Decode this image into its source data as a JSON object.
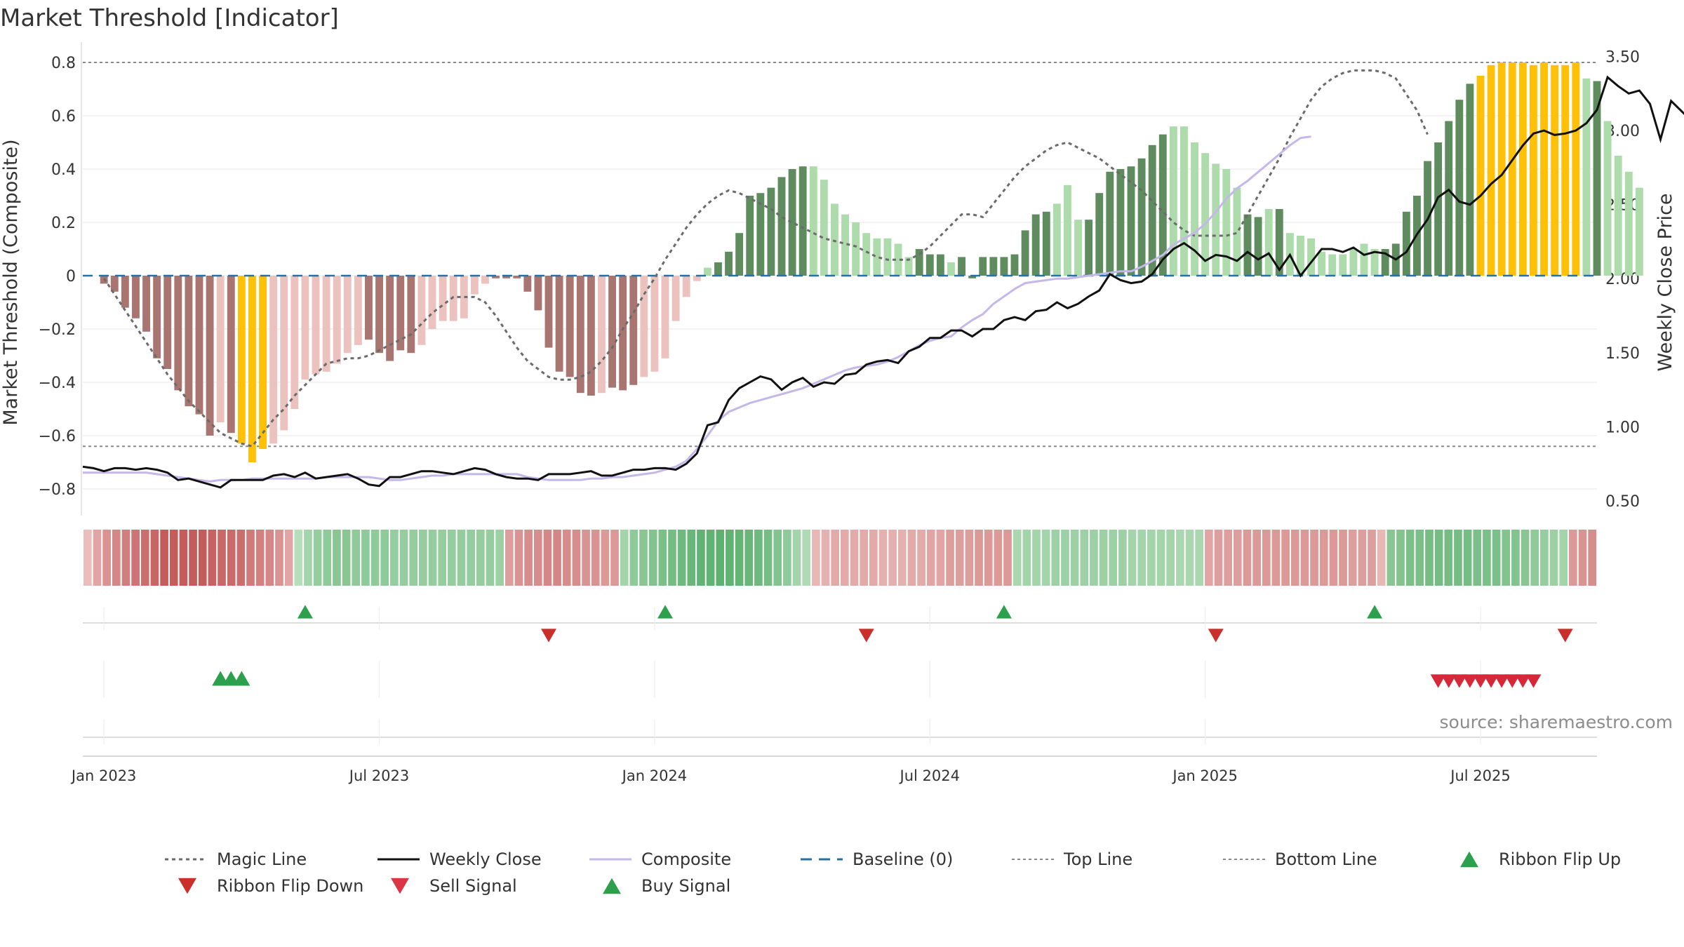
{
  "chart_data": {
    "type": "bar",
    "title": "Market Threshold [Indicator]",
    "ylabel_left": "Market Threshold (Composite)",
    "ylabel_right": "Weekly Close Price",
    "ylim_left": [
      -0.9,
      0.85
    ],
    "ylim_right": [
      0.4,
      3.55
    ],
    "yticks_left": [
      -0.8,
      -0.6,
      -0.4,
      -0.2,
      0,
      0.2,
      0.4,
      0.6,
      0.8
    ],
    "yticks_left_labels": [
      "−0.8",
      "−0.6",
      "−0.4",
      "−0.2",
      "0",
      "0.2",
      "0.4",
      "0.6",
      "0.8"
    ],
    "yticks_right": [
      0.5,
      1.0,
      1.5,
      2.0,
      2.5,
      3.0,
      3.5
    ],
    "yticks_right_labels": [
      "0.50",
      "1.00",
      "1.50",
      "2.00",
      "2.50",
      "3.00",
      "3.50"
    ],
    "xticks": [
      "Jan 2023",
      "Jul 2023",
      "Jan 2024",
      "Jul 2024",
      "Jan 2025",
      "Jul 2025"
    ],
    "xtick_weeks": [
      0,
      26,
      52,
      78,
      104,
      130
    ],
    "week_range": [
      -2,
      141
    ],
    "top_line": 0.8,
    "bottom_line": -0.64,
    "baseline": 0,
    "colors": {
      "neg_dark": "#a87570",
      "neg_light": "#ebc2bd",
      "pos_dark": "#5e8c5e",
      "pos_light": "#addbab",
      "extreme": "#ffc107",
      "composite": "#c4b8ea",
      "close": "#111111",
      "magic": "#6b6b6b",
      "baseline": "#2c6e9e",
      "guide": "#888888",
      "buy": "#2ca04c",
      "sell": "#d62839",
      "flip_down": "#c9302c"
    },
    "composite_bars": [
      -0.03,
      -0.06,
      -0.12,
      -0.16,
      -0.21,
      -0.31,
      -0.35,
      -0.43,
      -0.49,
      -0.52,
      -0.6,
      -0.55,
      -0.59,
      -0.63,
      -0.7,
      -0.65,
      -0.63,
      -0.58,
      -0.5,
      -0.39,
      -0.37,
      -0.36,
      -0.33,
      -0.29,
      -0.26,
      -0.24,
      -0.29,
      -0.32,
      -0.28,
      -0.29,
      -0.26,
      -0.2,
      -0.17,
      -0.17,
      -0.16,
      -0.07,
      -0.03,
      -0.01,
      -0.01,
      -0.01,
      -0.06,
      -0.13,
      -0.27,
      -0.36,
      -0.38,
      -0.44,
      -0.45,
      -0.44,
      -0.42,
      -0.43,
      -0.41,
      -0.38,
      -0.36,
      -0.31,
      -0.17,
      -0.08,
      -0.02,
      0.03,
      0.05,
      0.09,
      0.16,
      0.3,
      0.31,
      0.33,
      0.37,
      0.4,
      0.41,
      0.41,
      0.36,
      0.27,
      0.23,
      0.2,
      0.16,
      0.14,
      0.14,
      0.12,
      0.07,
      0.1,
      0.08,
      0.08,
      0.05,
      0.07,
      -0.01,
      0.07,
      0.07,
      0.07,
      0.08,
      0.17,
      0.23,
      0.24,
      0.27,
      0.34,
      0.21,
      0.21,
      0.31,
      0.39,
      0.4,
      0.41,
      0.44,
      0.49,
      0.53,
      0.56,
      0.56,
      0.5,
      0.46,
      0.42,
      0.4,
      0.33,
      0.23,
      0.22,
      0.25,
      0.25,
      0.16,
      0.15,
      0.14,
      0.09,
      0.08,
      0.08,
      0.1,
      0.12,
      0.1,
      0.1,
      0.12,
      0.24,
      0.3,
      0.43,
      0.5,
      0.58,
      0.66,
      0.72,
      0.75,
      0.79,
      0.8,
      0.8,
      0.8,
      0.79,
      0.8,
      0.79,
      0.79,
      0.8,
      0.74,
      0.73,
      0.58,
      0.45,
      0.39,
      0.33
    ],
    "composite_bar_colors": [
      "neg_dark",
      "neg_dark",
      "neg_dark",
      "neg_dark",
      "neg_dark",
      "neg_dark",
      "neg_dark",
      "neg_dark",
      "neg_dark",
      "neg_dark",
      "neg_dark",
      "neg_light",
      "neg_dark",
      "extreme",
      "extreme",
      "extreme",
      "neg_light",
      "neg_light",
      "neg_light",
      "neg_light",
      "neg_light",
      "neg_light",
      "neg_light",
      "neg_light",
      "neg_light",
      "neg_dark",
      "neg_dark",
      "neg_dark",
      "neg_dark",
      "neg_dark",
      "neg_light",
      "neg_light",
      "neg_light",
      "neg_light",
      "neg_light",
      "neg_light",
      "neg_light",
      "neg_dark",
      "neg_dark",
      "neg_dark",
      "neg_dark",
      "neg_dark",
      "neg_dark",
      "neg_dark",
      "neg_dark",
      "neg_dark",
      "neg_dark",
      "neg_light",
      "neg_dark",
      "neg_dark",
      "neg_dark",
      "neg_light",
      "neg_light",
      "neg_light",
      "neg_light",
      "neg_light",
      "neg_light",
      "pos_light",
      "pos_dark",
      "pos_dark",
      "pos_dark",
      "pos_dark",
      "pos_dark",
      "pos_dark",
      "pos_dark",
      "pos_dark",
      "pos_dark",
      "pos_light",
      "pos_light",
      "pos_light",
      "pos_light",
      "pos_light",
      "pos_light",
      "pos_light",
      "pos_light",
      "pos_light",
      "pos_light",
      "pos_dark",
      "pos_dark",
      "pos_dark",
      "pos_light",
      "pos_dark",
      "pos_dark",
      "pos_dark",
      "pos_dark",
      "pos_dark",
      "pos_dark",
      "pos_dark",
      "pos_dark",
      "pos_dark",
      "pos_light",
      "pos_light",
      "pos_light",
      "pos_dark",
      "pos_dark",
      "pos_dark",
      "pos_dark",
      "pos_dark",
      "pos_dark",
      "pos_dark",
      "pos_dark",
      "pos_light",
      "pos_light",
      "pos_light",
      "pos_light",
      "pos_light",
      "pos_light",
      "pos_light",
      "pos_dark",
      "pos_dark",
      "pos_light",
      "pos_dark",
      "pos_light",
      "pos_light",
      "pos_light",
      "pos_light",
      "pos_light",
      "pos_light",
      "pos_light",
      "pos_light",
      "pos_light",
      "pos_dark",
      "pos_dark",
      "pos_dark",
      "pos_dark",
      "pos_dark",
      "pos_dark",
      "pos_dark",
      "pos_dark",
      "pos_dark",
      "extreme",
      "extreme",
      "extreme",
      "extreme",
      "extreme",
      "extreme",
      "extreme",
      "extreme",
      "extreme",
      "extreme",
      "pos_light",
      "pos_dark",
      "pos_light",
      "pos_light",
      "pos_light",
      "pos_light"
    ],
    "magic_line": [
      -0.01,
      -0.07,
      -0.13,
      -0.19,
      -0.25,
      -0.31,
      -0.37,
      -0.42,
      -0.47,
      -0.51,
      -0.55,
      -0.59,
      -0.61,
      -0.63,
      -0.64,
      -0.59,
      -0.54,
      -0.5,
      -0.45,
      -0.41,
      -0.37,
      -0.33,
      -0.32,
      -0.31,
      -0.31,
      -0.3,
      -0.28,
      -0.26,
      -0.24,
      -0.22,
      -0.18,
      -0.14,
      -0.11,
      -0.08,
      -0.08,
      -0.08,
      -0.1,
      -0.15,
      -0.21,
      -0.27,
      -0.32,
      -0.35,
      -0.38,
      -0.39,
      -0.39,
      -0.38,
      -0.36,
      -0.32,
      -0.27,
      -0.2,
      -0.14,
      -0.07,
      -0.01,
      0.06,
      0.12,
      0.18,
      0.23,
      0.27,
      0.3,
      0.32,
      0.31,
      0.29,
      0.27,
      0.25,
      0.22,
      0.2,
      0.18,
      0.16,
      0.14,
      0.13,
      0.12,
      0.11,
      0.09,
      0.07,
      0.06,
      0.06,
      0.06,
      0.08,
      0.11,
      0.15,
      0.19,
      0.23,
      0.23,
      0.22,
      0.27,
      0.32,
      0.37,
      0.41,
      0.44,
      0.47,
      0.49,
      0.5,
      0.48,
      0.46,
      0.44,
      0.41,
      0.38,
      0.35,
      0.32,
      0.28,
      0.24,
      0.2,
      0.17,
      0.15,
      0.15,
      0.15,
      0.15,
      0.16,
      0.23,
      0.3,
      0.37,
      0.44,
      0.52,
      0.59,
      0.66,
      0.71,
      0.74,
      0.76,
      0.77,
      0.77,
      0.77,
      0.76,
      0.74,
      0.68,
      0.62,
      0.53
    ],
    "magic_line_start_week": 0,
    "composite_line_price": [
      0.69,
      0.69,
      0.69,
      0.69,
      0.69,
      0.69,
      0.69,
      0.68,
      0.67,
      0.66,
      0.65,
      0.64,
      0.63,
      0.64,
      0.64,
      0.64,
      0.65,
      0.65,
      0.65,
      0.65,
      0.65,
      0.65,
      0.65,
      0.66,
      0.66,
      0.66,
      0.66,
      0.66,
      0.65,
      0.64,
      0.64,
      0.65,
      0.66,
      0.67,
      0.67,
      0.68,
      0.68,
      0.68,
      0.68,
      0.68,
      0.68,
      0.68,
      0.66,
      0.65,
      0.64,
      0.64,
      0.64,
      0.64,
      0.65,
      0.65,
      0.66,
      0.66,
      0.67,
      0.68,
      0.69,
      0.71,
      0.73,
      0.77,
      0.85,
      0.94,
      1.04,
      1.1,
      1.13,
      1.16,
      1.18,
      1.2,
      1.22,
      1.24,
      1.26,
      1.29,
      1.32,
      1.35,
      1.38,
      1.4,
      1.41,
      1.42,
      1.44,
      1.47,
      1.51,
      1.55,
      1.58,
      1.6,
      1.61,
      1.67,
      1.72,
      1.76,
      1.83,
      1.88,
      1.93,
      1.97,
      1.98,
      1.99,
      2.0,
      2.0,
      2.01,
      2.02,
      2.03,
      2.04,
      2.05,
      2.05,
      2.08,
      2.12,
      2.16,
      2.23,
      2.27,
      2.31,
      2.37,
      2.45,
      2.54,
      2.61,
      2.66,
      2.72,
      2.78,
      2.84,
      2.9,
      2.95,
      2.96
    ],
    "composite_line_start_week": -2,
    "weekly_close": [
      0.73,
      0.72,
      0.7,
      0.72,
      0.72,
      0.71,
      0.72,
      0.71,
      0.69,
      0.64,
      0.65,
      0.63,
      0.61,
      0.59,
      0.64,
      0.64,
      0.64,
      0.64,
      0.67,
      0.68,
      0.66,
      0.69,
      0.65,
      0.66,
      0.67,
      0.68,
      0.65,
      0.61,
      0.6,
      0.66,
      0.66,
      0.68,
      0.7,
      0.7,
      0.69,
      0.68,
      0.7,
      0.72,
      0.71,
      0.68,
      0.66,
      0.65,
      0.65,
      0.64,
      0.68,
      0.68,
      0.68,
      0.69,
      0.7,
      0.67,
      0.67,
      0.69,
      0.71,
      0.71,
      0.72,
      0.72,
      0.71,
      0.75,
      0.82,
      1.01,
      1.03,
      1.18,
      1.26,
      1.3,
      1.34,
      1.32,
      1.25,
      1.3,
      1.33,
      1.27,
      1.3,
      1.29,
      1.35,
      1.36,
      1.42,
      1.44,
      1.45,
      1.43,
      1.51,
      1.54,
      1.6,
      1.6,
      1.65,
      1.65,
      1.61,
      1.66,
      1.66,
      1.72,
      1.74,
      1.72,
      1.78,
      1.79,
      1.84,
      1.8,
      1.83,
      1.88,
      1.92,
      2.03,
      1.99,
      1.97,
      1.98,
      2.03,
      2.13,
      2.2,
      2.24,
      2.19,
      2.12,
      2.16,
      2.15,
      2.12,
      2.18,
      2.13,
      2.17,
      2.06,
      2.16,
      2.02,
      2.11,
      2.2,
      2.2,
      2.18,
      2.21,
      2.16,
      2.18,
      2.17,
      2.13,
      2.18,
      2.3,
      2.4,
      2.55,
      2.6,
      2.52,
      2.5,
      2.56,
      2.64,
      2.7,
      2.8,
      2.9,
      2.98,
      3.0,
      2.97,
      2.98,
      3.0,
      3.05,
      3.14,
      3.36,
      3.3,
      3.25,
      3.27,
      3.18,
      2.94,
      3.2,
      3.13,
      3.06
    ],
    "weekly_close_start_week": -2,
    "ribbon": [
      -0.2,
      -0.4,
      -0.55,
      -0.65,
      -0.72,
      -0.8,
      -0.85,
      -0.92,
      -1.0,
      -1.0,
      -1.0,
      -1.0,
      -1.0,
      -0.95,
      -0.9,
      -0.88,
      -0.85,
      -0.75,
      -0.7,
      -0.65,
      -0.55,
      -0.4,
      0.25,
      0.4,
      0.5,
      0.55,
      0.6,
      0.6,
      0.55,
      0.55,
      0.55,
      0.55,
      0.5,
      0.5,
      0.5,
      0.5,
      0.5,
      0.5,
      0.5,
      0.5,
      0.5,
      0.5,
      0.5,
      0.45,
      -0.45,
      -0.55,
      -0.6,
      -0.6,
      -0.65,
      -0.65,
      -0.6,
      -0.6,
      -0.55,
      -0.55,
      -0.5,
      -0.5,
      0.4,
      0.55,
      0.6,
      0.65,
      0.7,
      0.75,
      0.8,
      0.85,
      0.9,
      0.9,
      0.92,
      0.9,
      0.88,
      0.85,
      0.8,
      0.75,
      0.65,
      0.55,
      0.4,
      0.3,
      -0.25,
      -0.3,
      -0.35,
      -0.35,
      -0.35,
      -0.35,
      -0.35,
      -0.3,
      -0.3,
      -0.3,
      -0.35,
      -0.35,
      -0.4,
      -0.4,
      -0.45,
      -0.45,
      -0.45,
      -0.5,
      -0.5,
      -0.5,
      -0.5,
      0.35,
      0.4,
      0.4,
      0.4,
      0.45,
      0.45,
      0.45,
      0.45,
      0.45,
      0.45,
      0.45,
      0.45,
      0.4,
      0.4,
      0.4,
      0.4,
      0.4,
      0.35,
      0.35,
      0.35,
      -0.4,
      -0.45,
      -0.45,
      -0.45,
      -0.5,
      -0.5,
      -0.5,
      -0.5,
      -0.5,
      -0.5,
      -0.5,
      -0.5,
      -0.5,
      -0.5,
      -0.5,
      -0.45,
      -0.45,
      -0.45,
      -0.25,
      0.6,
      0.65,
      0.7,
      0.7,
      0.75,
      0.75,
      0.75,
      0.75,
      0.75,
      0.7,
      0.7,
      0.7,
      0.65,
      0.65,
      0.6,
      0.55,
      0.5,
      0.45,
      0.4,
      -0.5,
      -0.55,
      -0.6
    ],
    "ribbon_flip_up_weeks": [
      19,
      53,
      85,
      120
    ],
    "ribbon_flip_down_weeks": [
      42,
      72,
      105,
      138
    ],
    "buy_signal_weeks": [
      11,
      12,
      13
    ],
    "sell_signal_weeks": [
      126,
      127,
      128,
      129,
      130,
      131,
      132,
      133,
      134,
      135
    ],
    "legend": [
      {
        "label": "Magic Line",
        "kind": "dotted",
        "color": "#6b6b6b"
      },
      {
        "label": "Weekly Close",
        "kind": "solid",
        "color": "#111111"
      },
      {
        "label": "Composite",
        "kind": "solid",
        "color": "#c4b8ea"
      },
      {
        "label": "Baseline (0)",
        "kind": "dashed",
        "color": "#2c6e9e"
      },
      {
        "label": "Top Line",
        "kind": "fine-dotted",
        "color": "#888888"
      },
      {
        "label": "Bottom Line",
        "kind": "fine-dotted",
        "color": "#888888"
      },
      {
        "label": "Ribbon Flip Up",
        "kind": "tri-up",
        "color": "#2ca04c"
      },
      {
        "label": "Ribbon Flip Down",
        "kind": "tri-down",
        "color": "#c9302c"
      },
      {
        "label": "Sell Signal",
        "kind": "tri-down",
        "color": "#dc3545"
      },
      {
        "label": "Buy Signal",
        "kind": "tri-up",
        "color": "#2ca04c"
      }
    ],
    "legend_placement": "bottom",
    "grid": true
  },
  "source_text": "source: sharemaestro.com"
}
